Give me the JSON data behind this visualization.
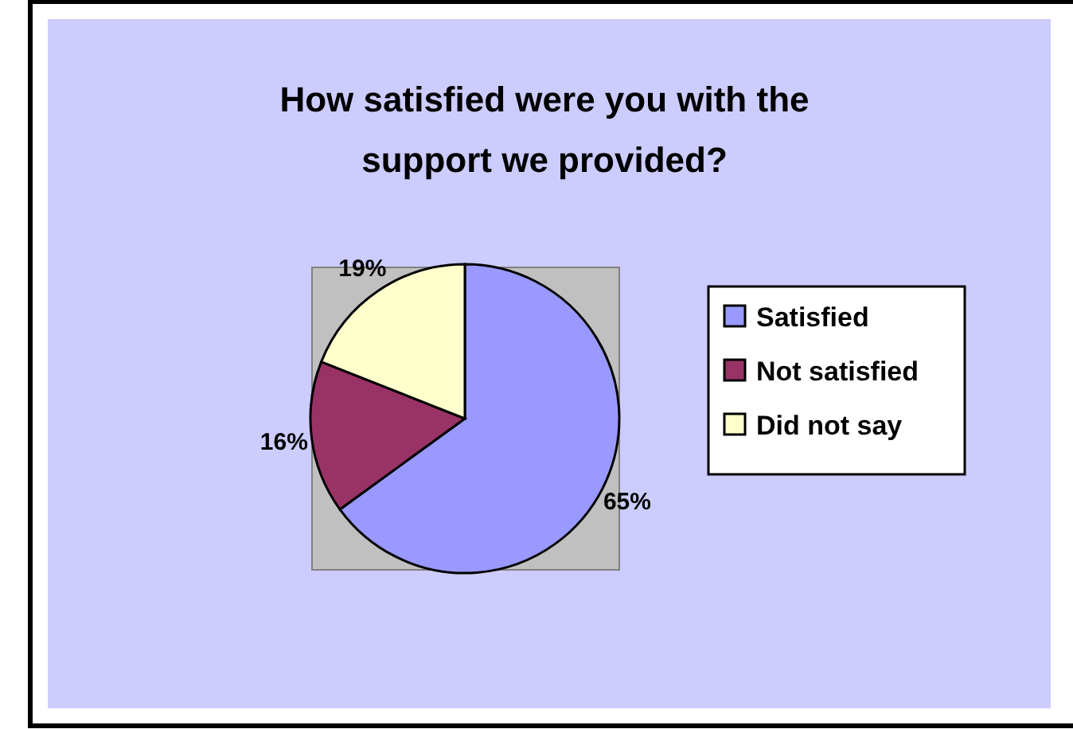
{
  "chart_data": {
    "type": "pie",
    "title": "How satisfied were you with the support we provided?",
    "categories": [
      "Satisfied",
      "Not satisfied",
      "Did not say"
    ],
    "values": [
      65,
      16,
      19
    ],
    "colors": [
      "#9999ff",
      "#993366",
      "#ffffcc"
    ],
    "value_labels": [
      "65%",
      "16%",
      "19%"
    ],
    "legend": "right"
  }
}
